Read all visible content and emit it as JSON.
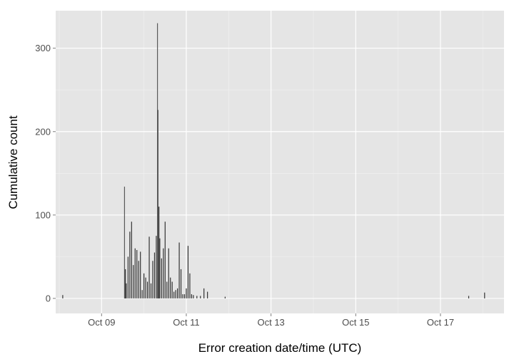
{
  "chart_data": {
    "type": "bar",
    "title": "",
    "xlabel": "Error creation date/time (UTC)",
    "ylabel": "Cumulative count",
    "xlim": [
      "2015-10-07T22:00",
      "2015-10-18T12:00"
    ],
    "ylim": [
      -18,
      345
    ],
    "x_ticks": [
      {
        "value": "2015-10-09",
        "label": "Oct 09"
      },
      {
        "value": "2015-10-11",
        "label": "Oct 11"
      },
      {
        "value": "2015-10-13",
        "label": "Oct 13"
      },
      {
        "value": "2015-10-15",
        "label": "Oct 15"
      },
      {
        "value": "2015-10-17",
        "label": "Oct 17"
      }
    ],
    "y_ticks": [
      0,
      100,
      200,
      300
    ],
    "grid": true,
    "panel_background": "#e5e5e5",
    "bar_color": "#333333",
    "highlight_color": "#595959",
    "series": [
      {
        "x": [
          "2015-10-08T02:00",
          "2015-10-09T13:00",
          "2015-10-09T13:30",
          "2015-10-09T14:00",
          "2015-10-09T15:00",
          "2015-10-09T16:00",
          "2015-10-09T17:00",
          "2015-10-09T18:00",
          "2015-10-09T19:00",
          "2015-10-09T20:00",
          "2015-10-09T21:00",
          "2015-10-09T22:00",
          "2015-10-09T23:00",
          "2015-10-10T00:00",
          "2015-10-10T01:00",
          "2015-10-10T02:00",
          "2015-10-10T03:00",
          "2015-10-10T04:00",
          "2015-10-10T05:00",
          "2015-10-10T06:00",
          "2015-10-10T07:00",
          "2015-10-10T07:40",
          "2015-10-10T08:00",
          "2015-10-10T08:30",
          "2015-10-10T09:00",
          "2015-10-10T10:00",
          "2015-10-10T11:00",
          "2015-10-10T12:00",
          "2015-10-10T13:00",
          "2015-10-10T14:00",
          "2015-10-10T15:00",
          "2015-10-10T16:00",
          "2015-10-10T17:00",
          "2015-10-10T18:00",
          "2015-10-10T19:00",
          "2015-10-10T20:00",
          "2015-10-10T21:00",
          "2015-10-10T22:00",
          "2015-10-10T23:00",
          "2015-10-11T00:00",
          "2015-10-11T01:00",
          "2015-10-11T02:00",
          "2015-10-11T03:00",
          "2015-10-11T04:00",
          "2015-10-11T06:00",
          "2015-10-11T08:00",
          "2015-10-11T10:00",
          "2015-10-11T12:00",
          "2015-10-11T22:00",
          "2015-10-17T16:00",
          "2015-10-18T01:00"
        ],
        "values": [
          4,
          134,
          35,
          18,
          50,
          80,
          92,
          40,
          60,
          58,
          45,
          56,
          10,
          30,
          25,
          20,
          74,
          18,
          45,
          55,
          75,
          330,
          226,
          110,
          72,
          48,
          60,
          92,
          20,
          60,
          25,
          20,
          8,
          10,
          12,
          67,
          35,
          5,
          5,
          12,
          63,
          30,
          5,
          4,
          3,
          3,
          12,
          8,
          2,
          3,
          7
        ]
      }
    ]
  }
}
